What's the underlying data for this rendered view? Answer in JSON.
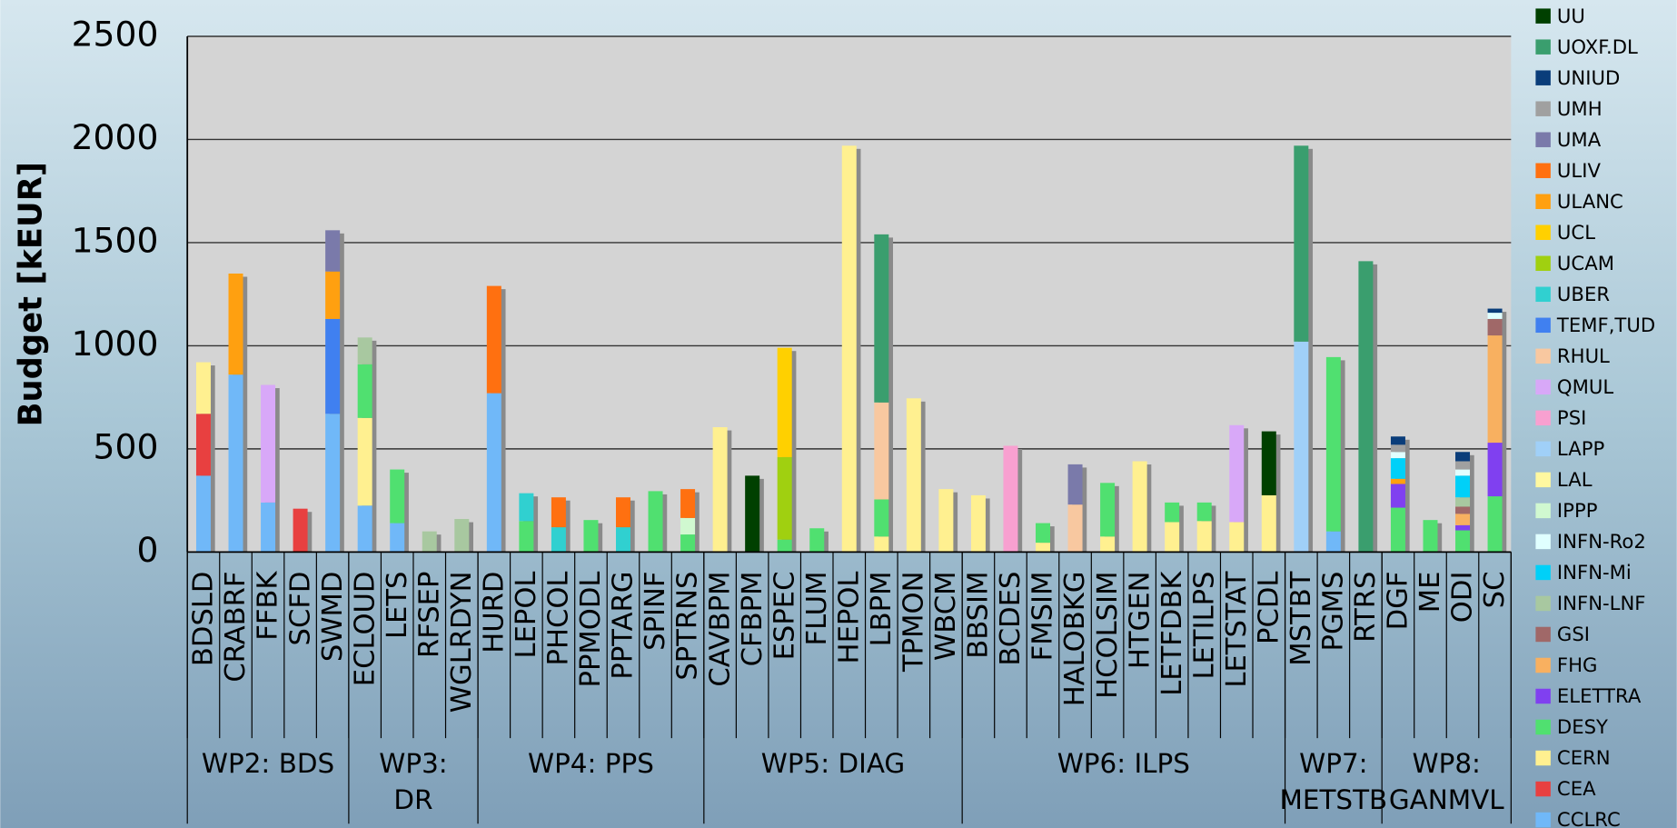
{
  "chart_data": {
    "type": "stacked_bar",
    "y_label": "Budget [kEUR]",
    "ylim": [
      0,
      2500
    ],
    "yticks": [
      0,
      500,
      1000,
      1500,
      2000,
      2500
    ],
    "grid": true,
    "legend": "right",
    "series": [
      {
        "name": "UU",
        "color": "#004000"
      },
      {
        "name": "UOXF.DL",
        "color": "#3a9e6e"
      },
      {
        "name": "UNIUD",
        "color": "#0a3d7a"
      },
      {
        "name": "UMH",
        "color": "#a0a0a0"
      },
      {
        "name": "UMA",
        "color": "#7a7aaa"
      },
      {
        "name": "ULIV",
        "color": "#ff7010"
      },
      {
        "name": "ULANC",
        "color": "#ffa010"
      },
      {
        "name": "UCL",
        "color": "#ffd000"
      },
      {
        "name": "UCAM",
        "color": "#a0d010"
      },
      {
        "name": "UBER",
        "color": "#30d0d0"
      },
      {
        "name": "TEMF,TUD",
        "color": "#4080f0"
      },
      {
        "name": "RHUL",
        "color": "#f8c8a0"
      },
      {
        "name": "QMUL",
        "color": "#d8a8f8"
      },
      {
        "name": "PSI",
        "color": "#f8a0d0"
      },
      {
        "name": "LAPP",
        "color": "#a0d0f8"
      },
      {
        "name": "LAL",
        "color": "#fff8a0"
      },
      {
        "name": "IPPP",
        "color": "#d0f8d0"
      },
      {
        "name": "INFN-Ro2",
        "color": "#e0ffff"
      },
      {
        "name": "INFN-Mi",
        "color": "#00d0f8"
      },
      {
        "name": "INFN-LNF",
        "color": "#a8c8a0"
      },
      {
        "name": "GSI",
        "color": "#a06868"
      },
      {
        "name": "FHG",
        "color": "#f8b060"
      },
      {
        "name": "ELETTRA",
        "color": "#8040f0"
      },
      {
        "name": "DESY",
        "color": "#50e070"
      },
      {
        "name": "CERN",
        "color": "#fff090"
      },
      {
        "name": "CEA",
        "color": "#e84040"
      },
      {
        "name": "CCLRC",
        "color": "#70b8f8"
      }
    ],
    "groups": [
      {
        "label_lines": [
          "WP2: BDS"
        ],
        "count": 5
      },
      {
        "label_lines": [
          "WP3:",
          "DR"
        ],
        "count": 4
      },
      {
        "label_lines": [
          "WP4: PPS"
        ],
        "count": 7
      },
      {
        "label_lines": [
          "WP5: DIAG"
        ],
        "count": 8
      },
      {
        "label_lines": [
          "WP6: ILPS"
        ],
        "count": 10
      },
      {
        "label_lines": [
          "WP7:",
          "METSTB"
        ],
        "count": 3
      },
      {
        "label_lines": [
          "WP8:",
          "GANMVL"
        ],
        "count": 4
      }
    ],
    "bars": [
      {
        "category": "BDSLD",
        "segments": [
          {
            "series": "CCLRC",
            "value": 370
          },
          {
            "series": "CEA",
            "value": 300
          },
          {
            "series": "CERN",
            "value": 250
          }
        ]
      },
      {
        "category": "CRABRF",
        "segments": [
          {
            "series": "CCLRC",
            "value": 860
          },
          {
            "series": "ULANC",
            "value": 490
          }
        ]
      },
      {
        "category": "FFBK",
        "segments": [
          {
            "series": "CCLRC",
            "value": 240
          },
          {
            "series": "QMUL",
            "value": 570
          }
        ]
      },
      {
        "category": "SCFD",
        "segments": [
          {
            "series": "CEA",
            "value": 210
          }
        ]
      },
      {
        "category": "SWMD",
        "segments": [
          {
            "series": "CCLRC",
            "value": 670
          },
          {
            "series": "TEMF,TUD",
            "value": 460
          },
          {
            "series": "ULANC",
            "value": 230
          },
          {
            "series": "UMA",
            "value": 200
          }
        ]
      },
      {
        "category": "ECLOUD",
        "segments": [
          {
            "series": "CCLRC",
            "value": 225
          },
          {
            "series": "CERN",
            "value": 425
          },
          {
            "series": "DESY",
            "value": 260
          },
          {
            "series": "INFN-LNF",
            "value": 130
          }
        ]
      },
      {
        "category": "LETS",
        "segments": [
          {
            "series": "CCLRC",
            "value": 140
          },
          {
            "series": "DESY",
            "value": 260
          }
        ]
      },
      {
        "category": "RFSEP",
        "segments": [
          {
            "series": "INFN-LNF",
            "value": 100
          }
        ]
      },
      {
        "category": "WGLRDYN",
        "segments": [
          {
            "series": "INFN-LNF",
            "value": 160
          }
        ]
      },
      {
        "category": "HURD",
        "segments": [
          {
            "series": "CCLRC",
            "value": 770
          },
          {
            "series": "ULIV",
            "value": 520
          }
        ]
      },
      {
        "category": "LEPOL",
        "segments": [
          {
            "series": "DESY",
            "value": 150
          },
          {
            "series": "UBER",
            "value": 135
          }
        ]
      },
      {
        "category": "PHCOL",
        "segments": [
          {
            "series": "UBER",
            "value": 120
          },
          {
            "series": "ULIV",
            "value": 145
          }
        ]
      },
      {
        "category": "PPMODL",
        "segments": [
          {
            "series": "DESY",
            "value": 155
          }
        ]
      },
      {
        "category": "PPTARG",
        "segments": [
          {
            "series": "UBER",
            "value": 120
          },
          {
            "series": "ULIV",
            "value": 145
          }
        ]
      },
      {
        "category": "SPINF",
        "segments": [
          {
            "series": "DESY",
            "value": 295
          }
        ]
      },
      {
        "category": "SPTRNS",
        "segments": [
          {
            "series": "DESY",
            "value": 85
          },
          {
            "series": "IPPP",
            "value": 80
          },
          {
            "series": "ULIV",
            "value": 140
          }
        ]
      },
      {
        "category": "CAVBPM",
        "segments": [
          {
            "series": "CERN",
            "value": 605
          }
        ]
      },
      {
        "category": "CFBPM",
        "segments": [
          {
            "series": "UU",
            "value": 370
          }
        ]
      },
      {
        "category": "ESPEC",
        "segments": [
          {
            "series": "DESY",
            "value": 60
          },
          {
            "series": "UCAM",
            "value": 400
          },
          {
            "series": "UCL",
            "value": 530
          }
        ]
      },
      {
        "category": "FLUM",
        "segments": [
          {
            "series": "DESY",
            "value": 115
          }
        ]
      },
      {
        "category": "HEPOL",
        "segments": [
          {
            "series": "CERN",
            "value": 1970
          }
        ]
      },
      {
        "category": "LBPM",
        "segments": [
          {
            "series": "CERN",
            "value": 75
          },
          {
            "series": "DESY",
            "value": 180
          },
          {
            "series": "RHUL",
            "value": 470
          },
          {
            "series": "UOXF.DL",
            "value": 815
          }
        ]
      },
      {
        "category": "TPMON",
        "segments": [
          {
            "series": "CERN",
            "value": 745
          }
        ]
      },
      {
        "category": "WBCM",
        "segments": [
          {
            "series": "CERN",
            "value": 305
          }
        ]
      },
      {
        "category": "BBSIM",
        "segments": [
          {
            "series": "CERN",
            "value": 275
          }
        ]
      },
      {
        "category": "BCDES",
        "segments": [
          {
            "series": "PSI",
            "value": 515
          }
        ]
      },
      {
        "category": "FMSIM",
        "segments": [
          {
            "series": "CERN",
            "value": 45
          },
          {
            "series": "DESY",
            "value": 95
          }
        ]
      },
      {
        "category": "HALOBKG",
        "segments": [
          {
            "series": "RHUL",
            "value": 230
          },
          {
            "series": "UMA",
            "value": 195
          }
        ]
      },
      {
        "category": "HCOLSIM",
        "segments": [
          {
            "series": "CERN",
            "value": 75
          },
          {
            "series": "DESY",
            "value": 260
          }
        ]
      },
      {
        "category": "HTGEN",
        "segments": [
          {
            "series": "CERN",
            "value": 440
          }
        ]
      },
      {
        "category": "LETFDBK",
        "segments": [
          {
            "series": "CERN",
            "value": 145
          },
          {
            "series": "DESY",
            "value": 95
          }
        ]
      },
      {
        "category": "LETILPS",
        "segments": [
          {
            "series": "CERN",
            "value": 150
          },
          {
            "series": "DESY",
            "value": 90
          }
        ]
      },
      {
        "category": "LETSTAT",
        "segments": [
          {
            "series": "CERN",
            "value": 145
          },
          {
            "series": "QMUL",
            "value": 470
          }
        ]
      },
      {
        "category": "PCDL",
        "segments": [
          {
            "series": "CERN",
            "value": 275
          },
          {
            "series": "UU",
            "value": 310
          }
        ]
      },
      {
        "category": "MSTBT",
        "segments": [
          {
            "series": "LAPP",
            "value": 1020
          },
          {
            "series": "UOXF.DL",
            "value": 950
          }
        ]
      },
      {
        "category": "PGMS",
        "segments": [
          {
            "series": "CCLRC",
            "value": 100
          },
          {
            "series": "DESY",
            "value": 845
          }
        ]
      },
      {
        "category": "RTRS",
        "segments": [
          {
            "series": "UOXF.DL",
            "value": 1410
          }
        ]
      },
      {
        "category": "DGF",
        "segments": [
          {
            "series": "DESY",
            "value": 215
          },
          {
            "series": "ELETTRA",
            "value": 115
          },
          {
            "series": "ULANC",
            "value": 25
          },
          {
            "series": "INFN-Mi",
            "value": 100
          },
          {
            "series": "INFN-Ro2",
            "value": 30
          },
          {
            "series": "UMH",
            "value": 35
          },
          {
            "series": "UNIUD",
            "value": 40
          }
        ]
      },
      {
        "category": "ME",
        "segments": [
          {
            "series": "DESY",
            "value": 155
          }
        ]
      },
      {
        "category": "ODI",
        "segments": [
          {
            "series": "DESY",
            "value": 105
          },
          {
            "series": "ELETTRA",
            "value": 25
          },
          {
            "series": "FHG",
            "value": 55
          },
          {
            "series": "GSI",
            "value": 35
          },
          {
            "series": "INFN-LNF",
            "value": 45
          },
          {
            "series": "INFN-Mi",
            "value": 105
          },
          {
            "series": "INFN-Ro2",
            "value": 30
          },
          {
            "series": "UMH",
            "value": 40
          },
          {
            "series": "UNIUD",
            "value": 45
          }
        ]
      },
      {
        "category": "SC",
        "segments": [
          {
            "series": "DESY",
            "value": 270
          },
          {
            "series": "ELETTRA",
            "value": 260
          },
          {
            "series": "FHG",
            "value": 520
          },
          {
            "series": "GSI",
            "value": 80
          },
          {
            "series": "INFN-Ro2",
            "value": 30
          },
          {
            "series": "UNIUD",
            "value": 20
          }
        ]
      }
    ]
  }
}
